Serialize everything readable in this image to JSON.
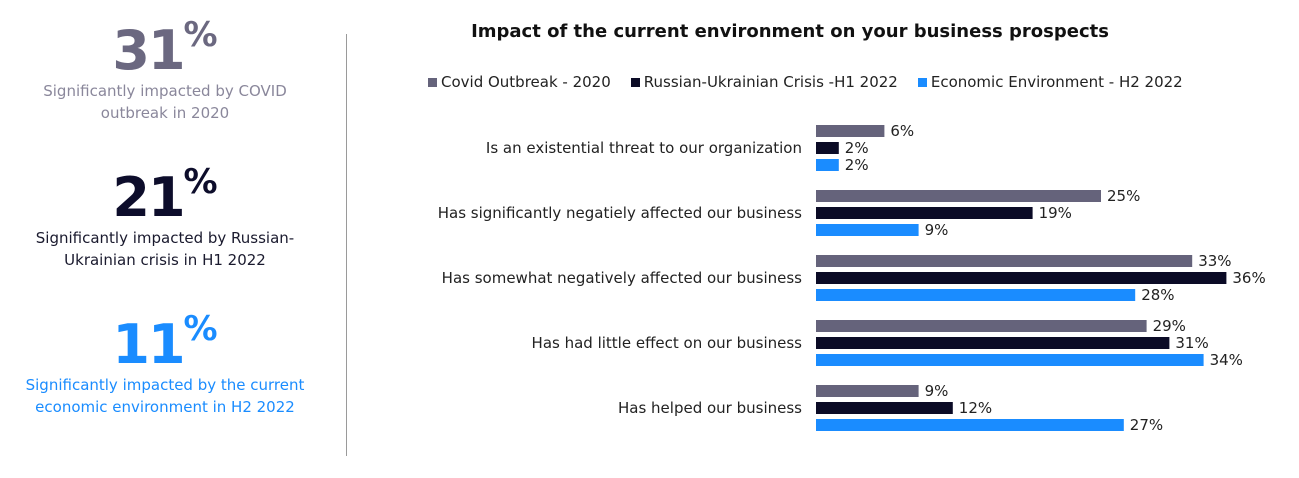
{
  "stats": [
    {
      "number": "31",
      "pct": "%",
      "desc_line1": "Significantly impacted by COVID",
      "desc_line2": "outbreak in 2020",
      "color": "#6b6880",
      "desc_color": "#8a879b"
    },
    {
      "number": "21",
      "pct": "%",
      "desc_line1": "Significantly impacted by Russian-",
      "desc_line2": "Ukrainian crisis in H1 2022",
      "color": "#0d0d2b",
      "desc_color": "#1a1a2e"
    },
    {
      "number": "11",
      "pct": "%",
      "desc_line1": "Significantly impacted by the current",
      "desc_line2": "economic environment in H2 2022",
      "color": "#1a8cff",
      "desc_color": "#1a8cff"
    }
  ],
  "chart_data": {
    "type": "bar",
    "orientation": "horizontal",
    "title": "Impact of the current environment on your business prospects",
    "categories": [
      "Is an existential threat to our organization",
      "Has significantly negatiely affected our business",
      "Has somewhat negatively affected our business",
      "Has had little effect on our business",
      "Has helped our business"
    ],
    "series": [
      {
        "name": "Covid Outbreak - 2020",
        "color": "#65637b",
        "values": [
          6,
          25,
          33,
          29,
          9
        ]
      },
      {
        "name": "Russian-Ukrainian Crisis -H1 2022",
        "color": "#0b0b26",
        "values": [
          2,
          19,
          36,
          31,
          12
        ]
      },
      {
        "name": "Economic Environment - H2 2022",
        "color": "#1a8cff",
        "values": [
          2,
          9,
          28,
          34,
          27
        ]
      }
    ],
    "value_suffix": "%",
    "legend_position": "top",
    "grid": false
  }
}
